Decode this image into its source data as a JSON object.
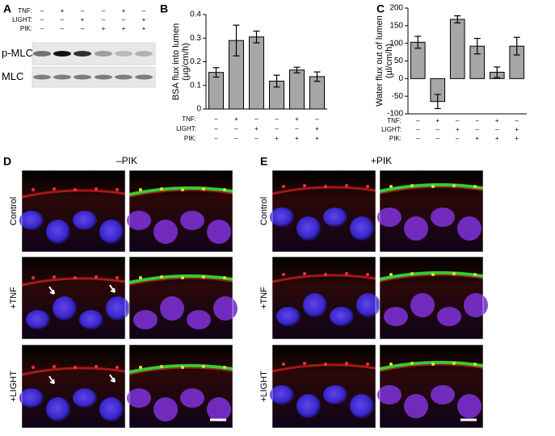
{
  "blot": {
    "panel": "A",
    "treatments": [
      {
        "label": "TNF:",
        "signs": [
          "–",
          "+",
          "–",
          "–",
          "+",
          "–"
        ]
      },
      {
        "label": "LIGHT:",
        "signs": [
          "–",
          "–",
          "+",
          "–",
          "–",
          "+"
        ]
      },
      {
        "label": "PIK:",
        "signs": [
          "–",
          "–",
          "–",
          "+",
          "+",
          "+"
        ]
      }
    ],
    "rows": [
      "p-MLC",
      "MLC"
    ]
  },
  "chart_data": [
    {
      "type": "bar",
      "panel": "B",
      "ylabel": [
        "BSA flux into lumen",
        "(µg/cm/h)"
      ],
      "values": [
        0.155,
        0.29,
        0.305,
        0.118,
        0.165,
        0.137
      ],
      "errors": [
        0.02,
        0.065,
        0.025,
        0.025,
        0.012,
        0.02
      ],
      "color": "#a6a6a6",
      "ylim": [
        0,
        0.4
      ],
      "yticks": [
        0,
        0.1,
        0.2,
        0.3,
        0.4
      ],
      "treatments": [
        {
          "label": "TNF:",
          "signs": [
            "–",
            "+",
            "–",
            "–",
            "+",
            "–"
          ]
        },
        {
          "label": "LIGHT:",
          "signs": [
            "–",
            "–",
            "+",
            "–",
            "–",
            "+"
          ]
        },
        {
          "label": "PIK:",
          "signs": [
            "–",
            "–",
            "–",
            "+",
            "+",
            "+"
          ]
        }
      ]
    },
    {
      "type": "bar",
      "panel": "C",
      "ylabel": [
        "Water flux out of lumen",
        "(µl/cm/h)"
      ],
      "values": [
        103,
        -65,
        168,
        92,
        18,
        92
      ],
      "errors": [
        17,
        20,
        10,
        22,
        15,
        25
      ],
      "color": "#a6a6a6",
      "ylim": [
        -100,
        200
      ],
      "yticks": [
        -100,
        -50,
        0,
        50,
        100,
        150,
        200
      ],
      "treatments": [
        {
          "label": "TNF:",
          "signs": [
            "–",
            "+",
            "–",
            "–",
            "+",
            "–"
          ]
        },
        {
          "label": "LIGHT:",
          "signs": [
            "–",
            "–",
            "+",
            "–",
            "–",
            "+"
          ]
        },
        {
          "label": "PIK:",
          "signs": [
            "–",
            "–",
            "–",
            "+",
            "+",
            "+"
          ]
        }
      ]
    }
  ],
  "images": [
    {
      "panel": "D",
      "title": "–PIK",
      "rows": [
        "Control",
        "+TNF",
        "+LIGHT"
      ]
    },
    {
      "panel": "E",
      "title": "+PIK",
      "rows": [
        "Control",
        "+TNF",
        "+LIGHT"
      ]
    }
  ]
}
